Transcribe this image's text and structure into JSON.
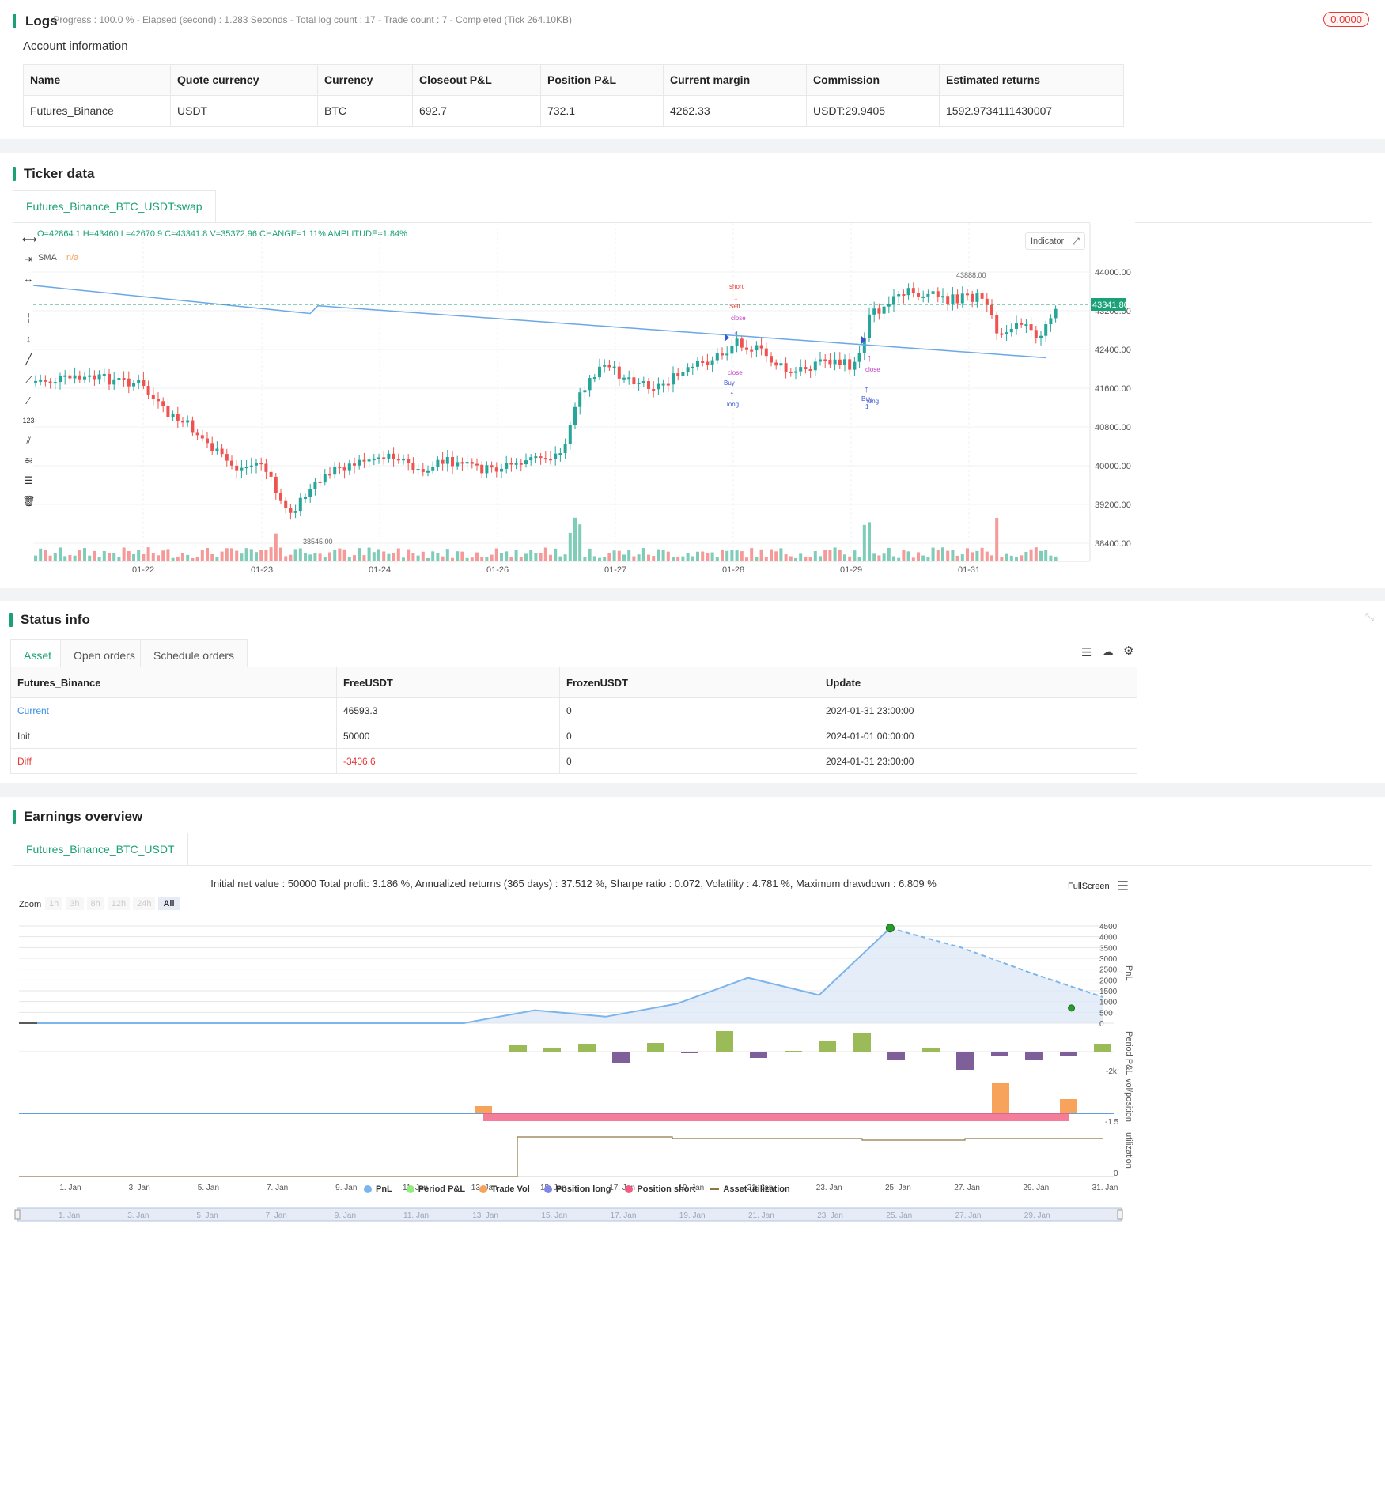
{
  "logs": {
    "title": "Logs",
    "status_line": "- Progress : 100.0 % - Elapsed (second) : 1.283  Seconds - Total log count : 17 - Trade count : 7 - Completed (Tick 264.10KB)",
    "badge": "0.0000"
  },
  "account": {
    "title": "Account information",
    "columns": [
      "Name",
      "Quote currency",
      "Currency",
      "Closeout P&L",
      "Position P&L",
      "Current margin",
      "Commission",
      "Estimated returns"
    ],
    "row": [
      "Futures_Binance",
      "USDT",
      "BTC",
      "692.7",
      "732.1",
      "4262.33",
      "USDT:29.9405",
      "1592.9734111430007"
    ]
  },
  "ticker": {
    "title": "Ticker data",
    "tab": "Futures_Binance_BTC_USDT:swap",
    "ohlc": "O=42864.1 H=43460 L=42670.9 C=43341.8 V=35372.96 CHANGE=1.11% AMPLITUDE=1.84%",
    "sma_label": "SMA",
    "sma_value": "n/a",
    "indicator_btn": "Indicator",
    "price_tag": "43341.80",
    "high_label": "43888.00",
    "low_label": "38545.00",
    "y_ticks": [
      "44000.00",
      "43200.00",
      "42400.00",
      "41600.00",
      "40800.00",
      "40000.00",
      "39200.00",
      "38400.00"
    ],
    "x_ticks": [
      "01-22",
      "01-23",
      "01-24",
      "01-26",
      "01-27",
      "01-28",
      "01-29",
      "01-31"
    ],
    "markers": {
      "short": "short",
      "sell": "Sell",
      "close": "close",
      "buy": "Buy",
      "long": "long",
      "one": "1"
    }
  },
  "status": {
    "title": "Status info",
    "tabs": [
      "Asset",
      "Open orders",
      "Schedule orders"
    ],
    "columns": [
      "Futures_Binance",
      "FreeUSDT",
      "FrozenUSDT",
      "Update"
    ],
    "rows": [
      [
        "Current",
        "46593.3",
        "0",
        "2024-01-31 23:00:00"
      ],
      [
        "Init",
        "50000",
        "0",
        "2024-01-01 00:00:00"
      ],
      [
        "Diff",
        "-3406.6",
        "0",
        "2024-01-31 23:00:00"
      ]
    ],
    "colors": {
      "current": "#3a8ee6",
      "diff": "#e53935"
    }
  },
  "earnings": {
    "title": "Earnings overview",
    "tab": "Futures_Binance_BTC_USDT",
    "summary": "Initial net value : 50000 Total profit: 3.186 %, Annualized returns (365 days) : 37.512 %, Sharpe ratio : 0.072, Volatility : 4.781 %, Maximum drawdown : 6.809 %",
    "fullscreen": "FullScreen",
    "zoom_label": "Zoom",
    "zoom_options": [
      "1h",
      "3h",
      "8h",
      "12h",
      "24h",
      "All"
    ],
    "pnl_ticks": [
      "4500",
      "4000",
      "3500",
      "3000",
      "2500",
      "2000",
      "1500",
      "1000",
      "500",
      "0"
    ],
    "axis_titles": [
      "PnL",
      "Period P&L",
      "vol/position",
      "utilization"
    ],
    "period_tick": "-2k",
    "vol_tick": "-1.5",
    "util_tick": "0",
    "x_ticks": [
      "1. Jan",
      "3. Jan",
      "5. Jan",
      "7. Jan",
      "9. Jan",
      "11. Jan",
      "13. Jan",
      "15. Jan",
      "17. Jan",
      "19. Jan",
      "21. Jan",
      "23. Jan",
      "25. Jan",
      "27. Jan",
      "29. Jan",
      "31. Jan"
    ],
    "legend": [
      {
        "label": "PnL",
        "color": "#7cb5ec"
      },
      {
        "label": "Period P&L",
        "color": "#90ed7d"
      },
      {
        "label": "Trade Vol",
        "color": "#f7a35c"
      },
      {
        "label": "Position long",
        "color": "#8085e9"
      },
      {
        "label": "Position short",
        "color": "#f15c80"
      },
      {
        "label": "Asset utilization",
        "color": "#8d7744"
      }
    ],
    "navigator_ticks": [
      "1. Jan",
      "3. Jan",
      "5. Jan",
      "7. Jan",
      "9. Jan",
      "11. Jan",
      "13. Jan",
      "15. Jan",
      "17. Jan",
      "19. Jan",
      "21. Jan",
      "23. Jan",
      "25. Jan",
      "27. Jan",
      "29. Jan"
    ]
  },
  "chart_data": {
    "type": "line",
    "title": "",
    "x": [
      "1. Jan",
      "3. Jan",
      "5. Jan",
      "7. Jan",
      "9. Jan",
      "11. Jan",
      "13. Jan",
      "15. Jan",
      "17. Jan",
      "19. Jan",
      "21. Jan",
      "23. Jan",
      "25. Jan",
      "27. Jan",
      "29. Jan",
      "31. Jan"
    ],
    "series": [
      {
        "name": "PnL",
        "values": [
          0,
          0,
          0,
          0,
          0,
          0,
          0,
          600,
          300,
          900,
          2100,
          1300,
          4400,
          3500,
          2300,
          1200
        ]
      }
    ],
    "ylim": [
      0,
      4500
    ]
  }
}
